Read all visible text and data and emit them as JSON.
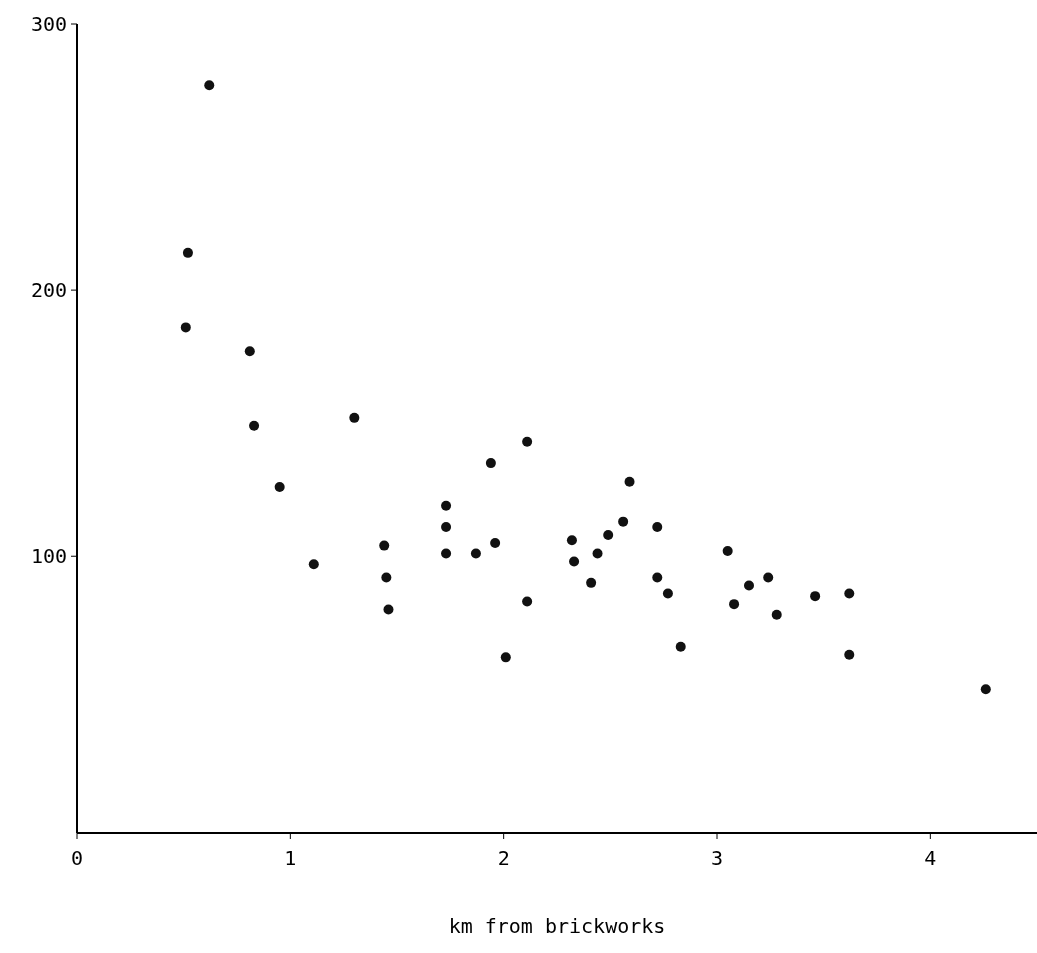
{
  "chart_data": {
    "type": "scatter",
    "xlabel": "km from brickworks",
    "x": [
      0.51,
      0.52,
      0.62,
      0.81,
      0.83,
      0.95,
      1.11,
      1.3,
      1.44,
      1.45,
      1.46,
      1.73,
      1.73,
      1.73,
      1.87,
      1.94,
      1.96,
      2.01,
      2.11,
      2.11,
      2.32,
      2.33,
      2.41,
      2.44,
      2.49,
      2.56,
      2.59,
      2.72,
      2.72,
      2.77,
      2.83,
      3.05,
      3.08,
      3.15,
      3.24,
      3.28,
      3.46,
      3.62,
      3.62,
      4.26
    ],
    "values": [
      186,
      214,
      277,
      177,
      149,
      126,
      97,
      152,
      104,
      92,
      80,
      119,
      111,
      101,
      101,
      135,
      105,
      62,
      143,
      83,
      106,
      98,
      90,
      101,
      108,
      113,
      128,
      111,
      92,
      86,
      66,
      102,
      82,
      89,
      92,
      78,
      85,
      86,
      63,
      50
    ],
    "color": "#111111",
    "marker": "circle",
    "xlim": [
      0,
      4.5
    ],
    "xticks": [
      0,
      1,
      2,
      3,
      4
    ],
    "ylim": [
      -4,
      300
    ],
    "yticks": [
      100,
      200,
      300
    ],
    "grid": false
  }
}
